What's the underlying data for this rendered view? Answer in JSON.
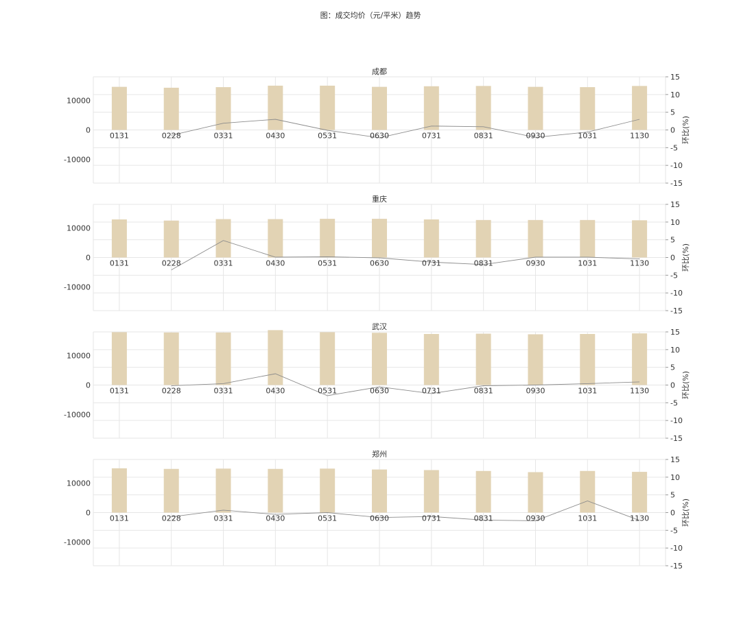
{
  "title": "图：成交均价（元/平米）趋势",
  "colors": {
    "bar": "#e2d3b4",
    "line": "#8c8c8c",
    "grid": "#e6e6e6",
    "text": "#333333"
  },
  "chart_data": [
    {
      "type": "bar",
      "title": "成都",
      "categories": [
        "0131",
        "0228",
        "0331",
        "0430",
        "0531",
        "0630",
        "0731",
        "0831",
        "0930",
        "1031",
        "1130"
      ],
      "series": [
        {
          "type": "bar",
          "axis": "left",
          "values": [
            14600,
            14300,
            14500,
            15000,
            15000,
            14600,
            14800,
            14900,
            14600,
            14500,
            14900
          ]
        },
        {
          "type": "line",
          "axis": "right",
          "values": [
            null,
            -1.5,
            1.9,
            3.0,
            -0.1,
            -2.2,
            1.1,
            0.9,
            -2.1,
            -0.6,
            3.0
          ]
        }
      ],
      "ylim": [
        -18000,
        18000
      ],
      "yticks": [
        -10000,
        0,
        10000
      ],
      "ylabel": "",
      "y2label": "环比(%)",
      "y2lim": [
        -15,
        15
      ],
      "y2ticks": [
        -15,
        -10,
        -5,
        0,
        5,
        10,
        15
      ],
      "grid": true
    },
    {
      "type": "bar",
      "title": "重庆",
      "categories": [
        "0131",
        "0228",
        "0331",
        "0430",
        "0531",
        "0630",
        "0731",
        "0831",
        "0930",
        "1031",
        "1130"
      ],
      "series": [
        {
          "type": "bar",
          "axis": "left",
          "values": [
            12900,
            12500,
            13000,
            13000,
            13100,
            13100,
            12900,
            12700,
            12700,
            12700,
            12600
          ]
        },
        {
          "type": "line",
          "axis": "right",
          "values": [
            null,
            -3.5,
            4.8,
            0.1,
            0.2,
            -0.1,
            -1.3,
            -2.0,
            0.1,
            0.1,
            -0.4
          ]
        }
      ],
      "ylim": [
        -18000,
        18000
      ],
      "yticks": [
        -10000,
        0,
        10000
      ],
      "ylabel": "",
      "y2label": "环比(%)",
      "y2lim": [
        -15,
        15
      ],
      "y2ticks": [
        -15,
        -10,
        -5,
        0,
        5,
        10,
        15
      ],
      "grid": true
    },
    {
      "type": "bar",
      "title": "武汉",
      "categories": [
        "0131",
        "0228",
        "0331",
        "0430",
        "0531",
        "0630",
        "0731",
        "0831",
        "0930",
        "1031",
        "1130"
      ],
      "series": [
        {
          "type": "bar",
          "axis": "left",
          "values": [
            17900,
            17800,
            17800,
            18600,
            17900,
            17700,
            17300,
            17400,
            17200,
            17300,
            17500
          ]
        },
        {
          "type": "line",
          "axis": "right",
          "values": [
            null,
            -0.2,
            0.4,
            3.2,
            -3.0,
            -0.5,
            -2.4,
            -0.2,
            0.0,
            0.4,
            0.9
          ]
        }
      ],
      "ylim": [
        -18000,
        18000
      ],
      "yticks": [
        -10000,
        0,
        10000
      ],
      "ylabel": "",
      "y2label": "环比(%)",
      "y2lim": [
        -15,
        15
      ],
      "y2ticks": [
        -15,
        -10,
        -5,
        0,
        5,
        10,
        15
      ],
      "grid": true
    },
    {
      "type": "bar",
      "title": "郑州",
      "categories": [
        "0131",
        "0228",
        "0331",
        "0430",
        "0531",
        "0630",
        "0731",
        "0831",
        "0930",
        "1031",
        "1130"
      ],
      "series": [
        {
          "type": "bar",
          "axis": "left",
          "values": [
            15000,
            14800,
            14900,
            14800,
            14900,
            14600,
            14400,
            14100,
            13700,
            14100,
            13800
          ]
        },
        {
          "type": "line",
          "axis": "right",
          "values": [
            null,
            -1.2,
            0.7,
            -0.5,
            0.0,
            -1.4,
            -1.1,
            -2.1,
            -2.3,
            3.3,
            -2.2
          ]
        }
      ],
      "ylim": [
        -18000,
        18000
      ],
      "yticks": [
        -10000,
        0,
        10000
      ],
      "ylabel": "",
      "y2label": "环比(%)",
      "y2lim": [
        -15,
        15
      ],
      "y2ticks": [
        -15,
        -10,
        -5,
        0,
        5,
        10,
        15
      ],
      "grid": true
    }
  ]
}
